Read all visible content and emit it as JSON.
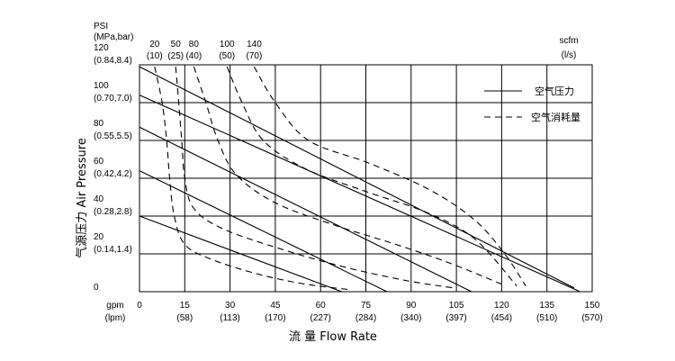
{
  "chart_data": {
    "type": "line",
    "xlabel": "流  量 Flow Rate",
    "ylabel": "气源压力 Air Pressure",
    "y_unit_label": "PSI",
    "y_unit_sub": "(MPa,bar)",
    "x_unit_label": "gpm",
    "x_unit_sub": "(lpm)",
    "top_unit_label": "scfm",
    "top_unit_sub": "(l/s)",
    "xlim": [
      0,
      150
    ],
    "ylim": [
      0,
      120
    ],
    "x_ticks": [
      {
        "value": 0,
        "main": "0",
        "sub": ""
      },
      {
        "value": 15,
        "main": "15",
        "sub": "(58)"
      },
      {
        "value": 30,
        "main": "30",
        "sub": "(113)"
      },
      {
        "value": 45,
        "main": "45",
        "sub": "(170)"
      },
      {
        "value": 60,
        "main": "60",
        "sub": "(227)"
      },
      {
        "value": 75,
        "main": "75",
        "sub": "(284)"
      },
      {
        "value": 90,
        "main": "90",
        "sub": "(340)"
      },
      {
        "value": 105,
        "main": "105",
        "sub": "(397)"
      },
      {
        "value": 120,
        "main": "120",
        "sub": "(454)"
      },
      {
        "value": 135,
        "main": "135",
        "sub": "(510)"
      },
      {
        "value": 150,
        "main": "150",
        "sub": "(570)"
      }
    ],
    "y_ticks": [
      {
        "value": 0,
        "main": "0",
        "sub": ""
      },
      {
        "value": 20,
        "main": "20",
        "sub": "(0.14,1.4)"
      },
      {
        "value": 40,
        "main": "40",
        "sub": "(0.28,2.8)"
      },
      {
        "value": 60,
        "main": "60",
        "sub": "(0.42,4.2)"
      },
      {
        "value": 80,
        "main": "80",
        "sub": "(0.55,5.5)"
      },
      {
        "value": 100,
        "main": "100",
        "sub": "(0.70,7.0)"
      },
      {
        "value": 120,
        "main": "120",
        "sub": "(0.84,8.4)"
      }
    ],
    "air_consumption_ticks": [
      {
        "main": "20",
        "sub": "(10)",
        "x_at_top": 5
      },
      {
        "main": "50",
        "sub": "(25)",
        "x_at_top": 12
      },
      {
        "main": "80",
        "sub": "(40)",
        "x_at_top": 18
      },
      {
        "main": "100",
        "sub": "(50)",
        "x_at_top": 29
      },
      {
        "main": "140",
        "sub": "(70)",
        "x_at_top": 38
      }
    ],
    "legend": [
      {
        "label": "空气压力",
        "style": "solid"
      },
      {
        "label": "空气消耗量",
        "style": "dashed"
      }
    ],
    "legend_position": "top-right",
    "grid": true,
    "solid_series": [
      {
        "psi": 20,
        "points": [
          [
            0,
            40
          ],
          [
            67,
            0
          ]
        ]
      },
      {
        "psi": 40,
        "points": [
          [
            0,
            64
          ],
          [
            82,
            0
          ]
        ]
      },
      {
        "psi": 60,
        "points": [
          [
            0,
            87
          ],
          [
            110,
            0
          ]
        ]
      },
      {
        "psi": 80,
        "points": [
          [
            0,
            104
          ],
          [
            146,
            0
          ]
        ]
      },
      {
        "psi": 100,
        "points": [
          [
            0,
            119
          ],
          [
            144,
            2
          ]
        ]
      }
    ],
    "dashed_series": [
      {
        "scfm": 20,
        "points": [
          [
            5,
            119
          ],
          [
            7.5,
            100
          ],
          [
            9,
            80
          ],
          [
            10,
            60
          ],
          [
            11.5,
            40
          ],
          [
            15,
            25
          ],
          [
            24,
            17
          ],
          [
            40,
            9
          ],
          [
            55,
            4
          ],
          [
            70,
            1
          ]
        ]
      },
      {
        "scfm": 50,
        "points": [
          [
            12,
            119
          ],
          [
            13,
            100
          ],
          [
            14,
            80
          ],
          [
            15,
            60
          ],
          [
            18,
            44
          ],
          [
            28,
            33
          ],
          [
            48,
            22
          ],
          [
            68,
            13
          ],
          [
            88,
            6
          ],
          [
            104,
            2
          ]
        ]
      },
      {
        "scfm": 80,
        "points": [
          [
            18,
            119
          ],
          [
            22,
            100
          ],
          [
            26,
            80
          ],
          [
            32,
            62
          ],
          [
            45,
            47
          ],
          [
            65,
            35
          ],
          [
            85,
            25
          ],
          [
            103,
            15
          ],
          [
            120,
            4
          ]
        ]
      },
      {
        "scfm": 100,
        "points": [
          [
            29,
            119
          ],
          [
            34,
            100
          ],
          [
            41,
            80
          ],
          [
            55,
            65
          ],
          [
            75,
            53
          ],
          [
            95,
            42
          ],
          [
            111,
            28
          ],
          [
            125,
            3
          ]
        ]
      },
      {
        "scfm": 140,
        "points": [
          [
            38,
            119
          ],
          [
            45,
            100
          ],
          [
            56,
            80
          ],
          [
            76,
            68
          ],
          [
            96,
            54
          ],
          [
            111,
            38
          ],
          [
            121,
            20
          ],
          [
            128,
            3
          ]
        ]
      }
    ]
  }
}
